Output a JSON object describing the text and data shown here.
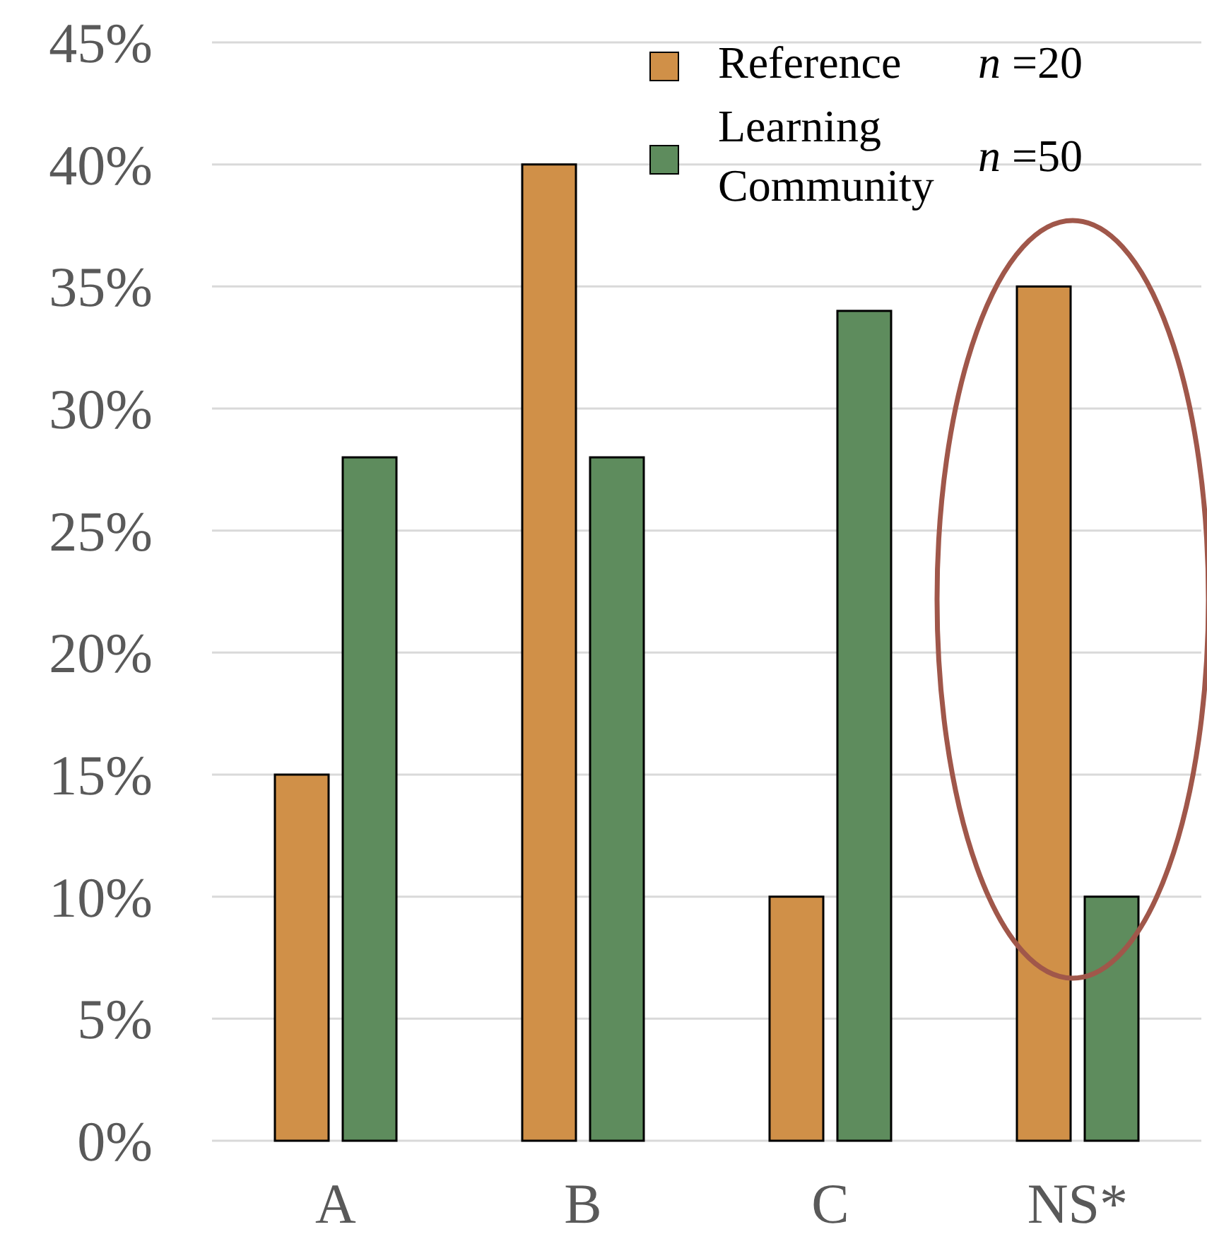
{
  "chart_data": {
    "type": "bar",
    "categories": [
      "A",
      "B",
      "C",
      "NS*"
    ],
    "series": [
      {
        "name": "Reference",
        "color": "#d09048",
        "values": [
          15,
          40,
          10,
          35
        ]
      },
      {
        "name": "Learning Community",
        "color": "#5e8c5d",
        "values": [
          28,
          28,
          34,
          10
        ]
      }
    ],
    "ylim": [
      0,
      45
    ],
    "yticks": [
      {
        "value": 0,
        "label": "0%"
      },
      {
        "value": 5,
        "label": "5%"
      },
      {
        "value": 10,
        "label": "10%"
      },
      {
        "value": 15,
        "label": "15%"
      },
      {
        "value": 20,
        "label": "20%"
      },
      {
        "value": 25,
        "label": "25%"
      },
      {
        "value": 30,
        "label": "30%"
      },
      {
        "value": 35,
        "label": "35%"
      },
      {
        "value": 40,
        "label": "40%"
      },
      {
        "value": 45,
        "label": "45%"
      }
    ],
    "grid": "y",
    "legend": "top right",
    "annotations": [
      "n =20",
      "n =50"
    ]
  }
}
